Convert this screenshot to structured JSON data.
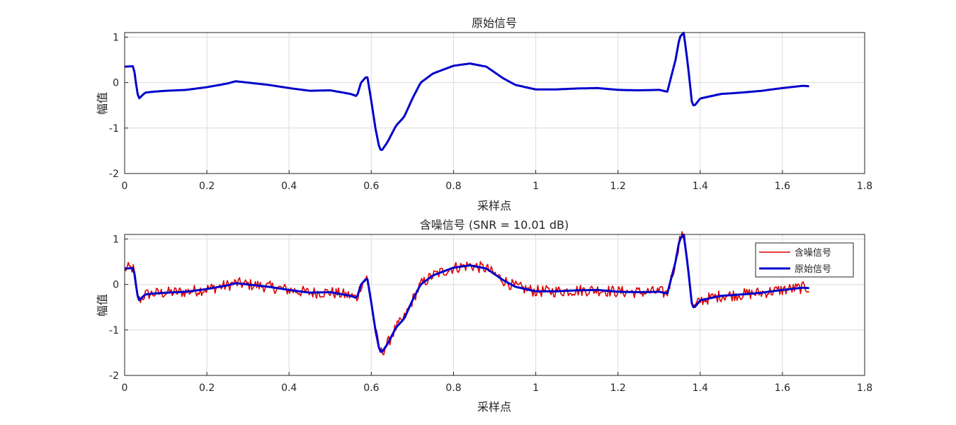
{
  "chart_data": [
    {
      "type": "line",
      "title": "原始信号",
      "xlabel": "采样点",
      "ylabel": "幅值",
      "xlim": [
        0,
        1.8
      ],
      "ylim": [
        -2,
        1.1
      ],
      "xticks": [
        0,
        0.2,
        0.4,
        0.6,
        0.8,
        1,
        1.2,
        1.4,
        1.6,
        1.8
      ],
      "xtick_labels": [
        "0",
        "0.2",
        "0.4",
        "0.6",
        "0.8",
        "1",
        "1.2",
        "1.4",
        "1.6",
        "1.8"
      ],
      "yticks": [
        -2,
        -1,
        0,
        1
      ],
      "ytick_labels": [
        "-2",
        "-1",
        "0",
        "1"
      ],
      "grid": true,
      "series": [
        {
          "color": "#0000cc",
          "points": [
            [
              0,
              0.35
            ],
            [
              0.02,
              0.36
            ],
            [
              0.025,
              0.2
            ],
            [
              0.03,
              -0.2
            ],
            [
              0.035,
              -0.35
            ],
            [
              0.05,
              -0.22
            ],
            [
              0.07,
              -0.2
            ],
            [
              0.1,
              -0.18
            ],
            [
              0.15,
              -0.16
            ],
            [
              0.2,
              -0.1
            ],
            [
              0.25,
              -0.02
            ],
            [
              0.27,
              0.03
            ],
            [
              0.3,
              0.0
            ],
            [
              0.35,
              -0.05
            ],
            [
              0.4,
              -0.12
            ],
            [
              0.45,
              -0.18
            ],
            [
              0.5,
              -0.17
            ],
            [
              0.55,
              -0.25
            ],
            [
              0.565,
              -0.3
            ],
            [
              0.575,
              0.0
            ],
            [
              0.59,
              0.15
            ],
            [
              0.6,
              -0.4
            ],
            [
              0.61,
              -1.0
            ],
            [
              0.62,
              -1.45
            ],
            [
              0.625,
              -1.5
            ],
            [
              0.64,
              -1.3
            ],
            [
              0.66,
              -0.95
            ],
            [
              0.68,
              -0.75
            ],
            [
              0.7,
              -0.35
            ],
            [
              0.72,
              0.0
            ],
            [
              0.75,
              0.2
            ],
            [
              0.8,
              0.37
            ],
            [
              0.84,
              0.42
            ],
            [
              0.88,
              0.35
            ],
            [
              0.92,
              0.1
            ],
            [
              0.95,
              -0.05
            ],
            [
              1.0,
              -0.15
            ],
            [
              1.05,
              -0.15
            ],
            [
              1.1,
              -0.13
            ],
            [
              1.15,
              -0.12
            ],
            [
              1.2,
              -0.16
            ],
            [
              1.25,
              -0.17
            ],
            [
              1.3,
              -0.16
            ],
            [
              1.32,
              -0.2
            ],
            [
              1.34,
              0.5
            ],
            [
              1.35,
              1.0
            ],
            [
              1.36,
              1.1
            ],
            [
              1.37,
              0.4
            ],
            [
              1.38,
              -0.45
            ],
            [
              1.385,
              -0.52
            ],
            [
              1.4,
              -0.35
            ],
            [
              1.45,
              -0.25
            ],
            [
              1.5,
              -0.22
            ],
            [
              1.55,
              -0.18
            ],
            [
              1.6,
              -0.12
            ],
            [
              1.65,
              -0.07
            ],
            [
              1.665,
              -0.08
            ]
          ]
        }
      ]
    },
    {
      "type": "line",
      "title": "含噪信号 (SNR = 10.01 dB)",
      "xlabel": "采样点",
      "ylabel": "幅值",
      "xlim": [
        0,
        1.8
      ],
      "ylim": [
        -2,
        1.1
      ],
      "xticks": [
        0,
        0.2,
        0.4,
        0.6,
        0.8,
        1,
        1.2,
        1.4,
        1.6,
        1.8
      ],
      "xtick_labels": [
        "0",
        "0.2",
        "0.4",
        "0.6",
        "0.8",
        "1",
        "1.2",
        "1.4",
        "1.6",
        "1.8"
      ],
      "yticks": [
        -2,
        -1,
        0,
        1
      ],
      "ytick_labels": [
        "-2",
        "-1",
        "0",
        "1"
      ],
      "grid": true,
      "legend": {
        "position": "top-right",
        "entries": [
          "含噪信号",
          "原始信号"
        ]
      },
      "series": [
        {
          "name": "含噪信号",
          "color": "#dd0000",
          "noise_amplitude": 0.1
        },
        {
          "name": "原始信号",
          "color": "#0000cc",
          "points": [
            [
              0,
              0.35
            ],
            [
              0.02,
              0.36
            ],
            [
              0.025,
              0.2
            ],
            [
              0.03,
              -0.2
            ],
            [
              0.035,
              -0.35
            ],
            [
              0.05,
              -0.22
            ],
            [
              0.07,
              -0.2
            ],
            [
              0.1,
              -0.18
            ],
            [
              0.15,
              -0.16
            ],
            [
              0.2,
              -0.1
            ],
            [
              0.25,
              -0.02
            ],
            [
              0.27,
              0.03
            ],
            [
              0.3,
              0.0
            ],
            [
              0.35,
              -0.05
            ],
            [
              0.4,
              -0.12
            ],
            [
              0.45,
              -0.18
            ],
            [
              0.5,
              -0.17
            ],
            [
              0.55,
              -0.25
            ],
            [
              0.565,
              -0.3
            ],
            [
              0.575,
              0.0
            ],
            [
              0.59,
              0.15
            ],
            [
              0.6,
              -0.4
            ],
            [
              0.61,
              -1.0
            ],
            [
              0.62,
              -1.45
            ],
            [
              0.625,
              -1.5
            ],
            [
              0.64,
              -1.3
            ],
            [
              0.66,
              -0.95
            ],
            [
              0.68,
              -0.75
            ],
            [
              0.7,
              -0.35
            ],
            [
              0.72,
              0.0
            ],
            [
              0.75,
              0.2
            ],
            [
              0.8,
              0.37
            ],
            [
              0.84,
              0.42
            ],
            [
              0.88,
              0.35
            ],
            [
              0.92,
              0.1
            ],
            [
              0.95,
              -0.05
            ],
            [
              1.0,
              -0.15
            ],
            [
              1.05,
              -0.15
            ],
            [
              1.1,
              -0.13
            ],
            [
              1.15,
              -0.12
            ],
            [
              1.2,
              -0.16
            ],
            [
              1.25,
              -0.17
            ],
            [
              1.3,
              -0.16
            ],
            [
              1.32,
              -0.2
            ],
            [
              1.34,
              0.5
            ],
            [
              1.35,
              1.0
            ],
            [
              1.36,
              1.1
            ],
            [
              1.37,
              0.4
            ],
            [
              1.38,
              -0.45
            ],
            [
              1.385,
              -0.52
            ],
            [
              1.4,
              -0.35
            ],
            [
              1.45,
              -0.25
            ],
            [
              1.5,
              -0.22
            ],
            [
              1.55,
              -0.18
            ],
            [
              1.6,
              -0.12
            ],
            [
              1.65,
              -0.07
            ],
            [
              1.665,
              -0.08
            ]
          ]
        }
      ]
    }
  ]
}
